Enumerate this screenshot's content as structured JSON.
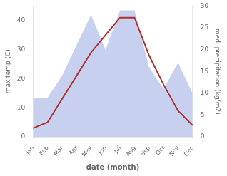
{
  "chart_data": {
    "type": "line",
    "xlabel": "date (month)",
    "ylabel": "max temp (C)",
    "y2label": "med. precipitation (kg/m2)",
    "categories": [
      "Jan",
      "Feb",
      "Mar",
      "Apr",
      "May",
      "Jun",
      "Jul",
      "Aug",
      "Sep",
      "Oct",
      "Nov",
      "Dec"
    ],
    "series": [
      {
        "type": "area",
        "color": "#c8d0f0",
        "axis": "y2",
        "values": [
          9,
          9,
          14,
          21,
          28,
          20,
          29,
          29,
          16,
          11,
          17,
          10
        ]
      },
      {
        "type": "line",
        "color": "#b03030",
        "values": [
          3,
          5,
          13,
          21,
          29,
          35,
          41,
          41,
          28,
          18,
          9,
          4
        ]
      }
    ],
    "ylim": [
      0,
      45
    ],
    "yticks": [
      0,
      10,
      20,
      30,
      40
    ],
    "y2lim": [
      0,
      30
    ],
    "y2ticks": [
      0,
      5,
      10,
      15,
      20,
      25,
      30
    ],
    "grid": false
  }
}
